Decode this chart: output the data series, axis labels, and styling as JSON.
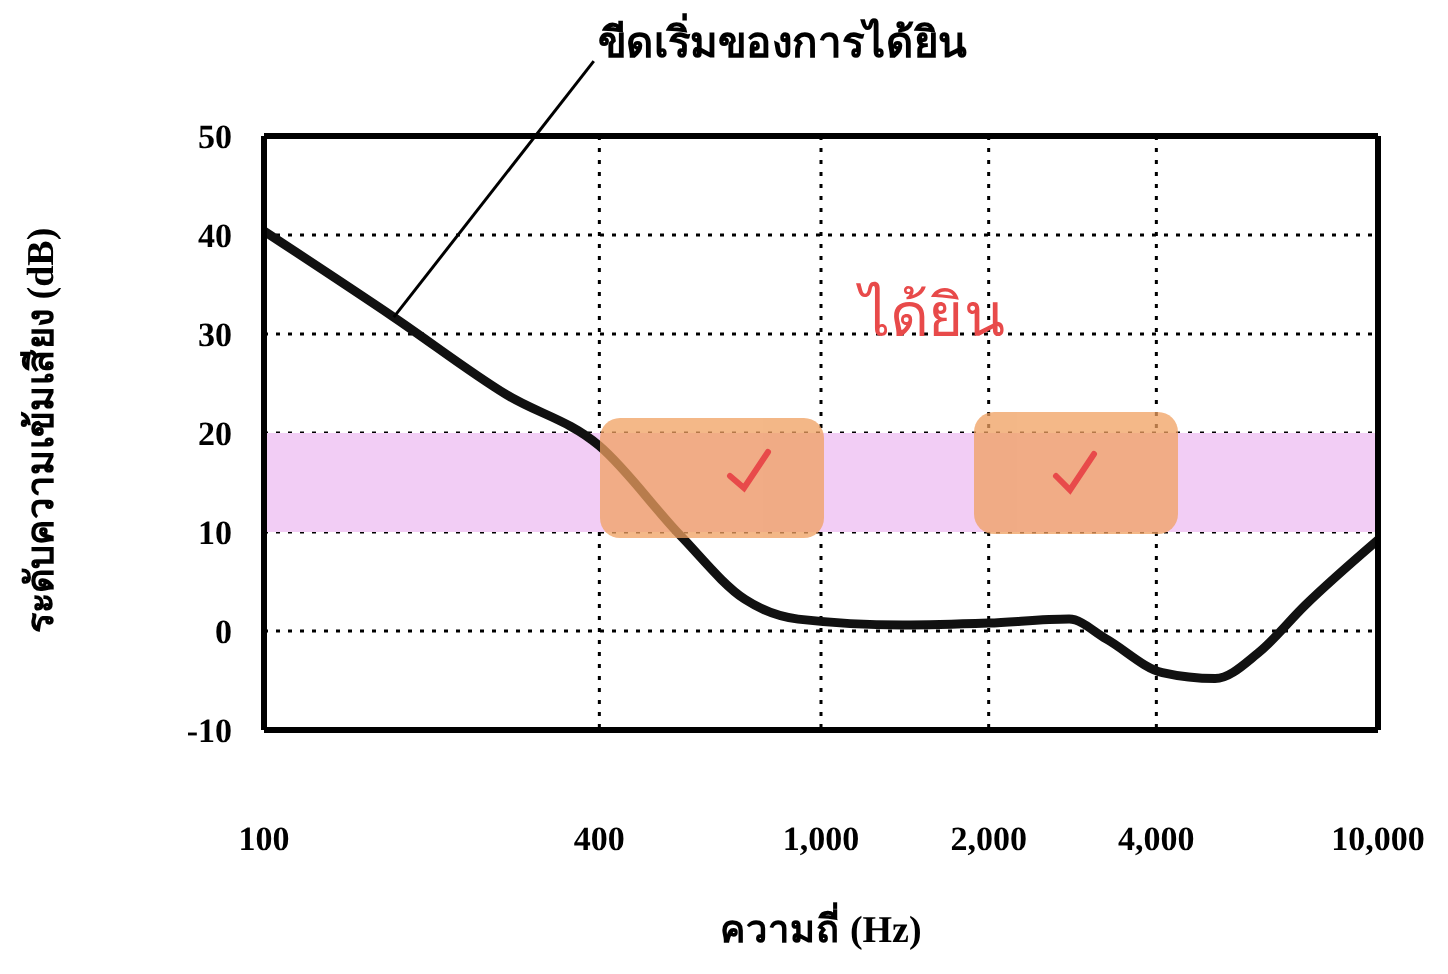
{
  "chart_data": {
    "type": "line",
    "xlabel": "ความถี่ (Hz)",
    "ylabel": "ระดับความเข้มเสียง (dB)",
    "log": "x",
    "x": [
      100,
      171,
      272,
      400,
      560,
      730,
      910,
      1400,
      2000,
      2790,
      3250,
      4100,
      5100,
      6100,
      7400,
      10000
    ],
    "series": [
      {
        "color": "#111111",
        "values": [
          40.4,
          31.7,
          23.9,
          18.7,
          9.6,
          3.2,
          1.2,
          0.6,
          0.8,
          1.2,
          -0.8,
          -4.2,
          -4.8,
          -2.2,
          2.6,
          9.2
        ]
      }
    ],
    "xlim": [
      100,
      10000
    ],
    "xticks": [
      100,
      400,
      {
        "value": 1000,
        "label": "1,000"
      },
      {
        "value": 2000,
        "label": "2,000"
      },
      {
        "value": 4000,
        "label": "4,000"
      },
      {
        "value": 10000,
        "label": "10,000"
      }
    ],
    "ylim": [
      -10,
      50
    ],
    "yticks": [
      -10,
      0,
      10,
      20,
      30,
      40,
      50
    ],
    "grid": true,
    "marker": "none",
    "line_style": "solid",
    "bands": [
      {
        "axis": "y",
        "from": 10,
        "to": 20,
        "color": "#f2cdf5"
      }
    ],
    "annotations": [
      {
        "text": "ขีดเริ่มของการได้ยิน",
        "x": 171,
        "y": 31.7
      },
      "ได้ยิน"
    ]
  }
}
